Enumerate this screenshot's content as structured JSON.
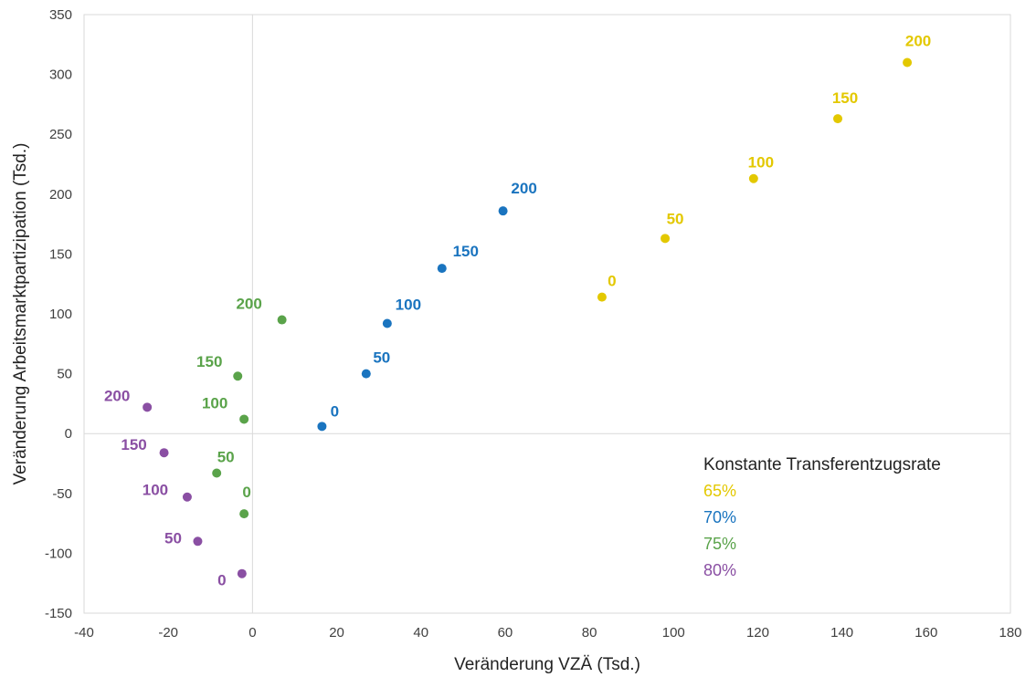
{
  "chart_data": {
    "type": "scatter",
    "xlabel": "Veränderung VZÄ (Tsd.)",
    "ylabel": "Veränderung Arbeitsmarktpartizipation (Tsd.)",
    "xlim": [
      -40,
      180
    ],
    "ylim": [
      -150,
      350
    ],
    "xticks": [
      -40,
      -20,
      0,
      20,
      40,
      60,
      80,
      100,
      120,
      140,
      160,
      180
    ],
    "yticks": [
      -150,
      -100,
      -50,
      0,
      50,
      100,
      150,
      200,
      250,
      300,
      350
    ],
    "grid": false,
    "zero_lines": true,
    "legend": {
      "title": "Konstante Transferentzugsrate",
      "placement": "bottom-right"
    },
    "series": [
      {
        "name": "65%",
        "color": "#e3c800",
        "points": [
          {
            "x": 83,
            "y": 114,
            "label": "0"
          },
          {
            "x": 98,
            "y": 163,
            "label": "50"
          },
          {
            "x": 119,
            "y": 213,
            "label": "100"
          },
          {
            "x": 139,
            "y": 263,
            "label": "150"
          },
          {
            "x": 155.5,
            "y": 310,
            "label": "200"
          }
        ]
      },
      {
        "name": "70%",
        "color": "#1a74bf",
        "points": [
          {
            "x": 16.5,
            "y": 6,
            "label": "0"
          },
          {
            "x": 27,
            "y": 50,
            "label": "50"
          },
          {
            "x": 32,
            "y": 92,
            "label": "100"
          },
          {
            "x": 45,
            "y": 138,
            "label": "150"
          },
          {
            "x": 59.5,
            "y": 186,
            "label": "200"
          }
        ]
      },
      {
        "name": "75%",
        "color": "#5aa34a",
        "points": [
          {
            "x": -2,
            "y": -67,
            "label": "0"
          },
          {
            "x": -8.5,
            "y": -33,
            "label": "50"
          },
          {
            "x": -2,
            "y": 12,
            "label": "100"
          },
          {
            "x": -3.5,
            "y": 48,
            "label": "150"
          },
          {
            "x": 7,
            "y": 95,
            "label": "200"
          }
        ]
      },
      {
        "name": "80%",
        "color": "#8a4fa3",
        "points": [
          {
            "x": -2.5,
            "y": -117,
            "label": "0"
          },
          {
            "x": -13,
            "y": -90,
            "label": "50"
          },
          {
            "x": -15.5,
            "y": -53,
            "label": "100"
          },
          {
            "x": -21,
            "y": -16,
            "label": "150"
          },
          {
            "x": -25,
            "y": 22,
            "label": "200"
          }
        ]
      }
    ]
  }
}
